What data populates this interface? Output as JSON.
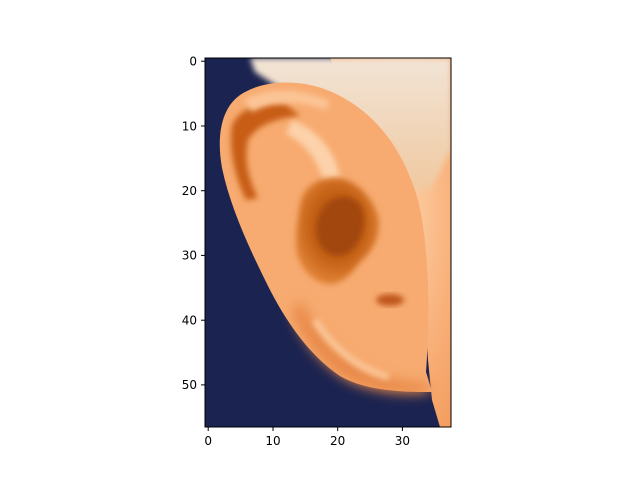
{
  "figure": {
    "image_subject": "ear-photo",
    "extent": {
      "x_min": -0.5,
      "x_max": 37.5,
      "y_min": -0.5,
      "y_max": 56.5
    },
    "y_axis_inverted": true,
    "x_ticks": [
      "0",
      "10",
      "20",
      "30"
    ],
    "y_ticks": [
      "0",
      "10",
      "20",
      "30",
      "40",
      "50"
    ],
    "colors": {
      "background": "#1b2350",
      "skin_light": "#fbc79a",
      "skin_mid": "#f4a56a",
      "skin_shadow": "#d4711f",
      "skin_deep": "#b0500d",
      "hair": "#e8d8c6"
    }
  }
}
